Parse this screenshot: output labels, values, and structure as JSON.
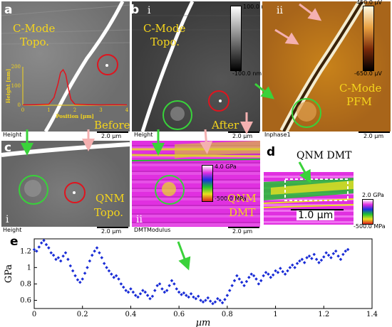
{
  "panels": {
    "a": {
      "letter": "a",
      "title_line1": "C-Mode",
      "title_line2": "Topo.",
      "label_before": "Before",
      "channel": "Height",
      "scale": "2.0 µm"
    },
    "b": {
      "letter": "b",
      "sub_i": "i",
      "sub_ii": "ii",
      "title_line1": "C-Mode",
      "title_line2": "Topo.",
      "label_after": "After",
      "channel_i": "Height",
      "scale_i": "2.0 µm",
      "channel_ii": "Inphase1",
      "scale_ii": "2.0 µm",
      "pfm_line1": "C-Mode",
      "pfm_line2": "PFM",
      "cbar_i_max": "100.0 nm",
      "cbar_i_min": "-100.0 nm",
      "cbar_ii_max": "450.0 µV",
      "cbar_ii_min": "-650.0 µV"
    },
    "c": {
      "letter": "c",
      "sub_i": "i",
      "sub_ii": "ii",
      "topo_line1": "QNM",
      "topo_line2": "Topo.",
      "dmt_line1": "QNM",
      "dmt_line2": "DMT",
      "channel_i": "Height",
      "scale_i": "2.0 µm",
      "channel_ii": "DMTModulus",
      "scale_ii": "2.0 µm",
      "cbar_max": "4.0 GPa",
      "cbar_min": "-500.0 MPa"
    },
    "d": {
      "letter": "d",
      "title": "QNM DMT",
      "scale": "1.0 µm",
      "cbar_max": "2.0 GPa",
      "cbar_min": "-500.0 MPa"
    },
    "e": {
      "letter": "e"
    }
  },
  "inset": {
    "type": "line",
    "xlabel": "Position [µm]",
    "ylabel": "Height [nm]",
    "xlim": [
      0,
      4
    ],
    "ylim": [
      0,
      200
    ],
    "xticks": [
      "0",
      "1",
      "2",
      "3",
      "4"
    ],
    "yticks": [
      "0",
      "100",
      "200"
    ],
    "x": [
      0,
      0.5,
      1.0,
      1.2,
      1.35,
      1.45,
      1.55,
      1.65,
      1.75,
      1.85,
      2.0,
      2.5,
      3.0,
      3.5,
      4.0
    ],
    "y": [
      2,
      3,
      5,
      40,
      110,
      170,
      185,
      160,
      90,
      30,
      5,
      3,
      2,
      3,
      2
    ]
  },
  "chart_data": {
    "type": "scatter",
    "xlabel": "µm",
    "ylabel": "GPa",
    "xlim": [
      0,
      1.4
    ],
    "ylim": [
      0.5,
      1.35
    ],
    "xticks": [
      "0",
      "0.2",
      "0.4",
      "0.6",
      "0.8",
      "1",
      "1.2",
      "1.4"
    ],
    "yticks": [
      "0.6",
      "0.8",
      "1",
      "1.2"
    ],
    "x": [
      0.0,
      0.01,
      0.02,
      0.03,
      0.04,
      0.05,
      0.06,
      0.07,
      0.08,
      0.09,
      0.1,
      0.11,
      0.12,
      0.13,
      0.14,
      0.15,
      0.16,
      0.17,
      0.18,
      0.19,
      0.2,
      0.21,
      0.22,
      0.23,
      0.24,
      0.25,
      0.26,
      0.27,
      0.28,
      0.29,
      0.3,
      0.31,
      0.32,
      0.33,
      0.34,
      0.35,
      0.36,
      0.37,
      0.38,
      0.39,
      0.4,
      0.41,
      0.42,
      0.43,
      0.44,
      0.45,
      0.46,
      0.47,
      0.48,
      0.49,
      0.5,
      0.51,
      0.52,
      0.53,
      0.54,
      0.55,
      0.56,
      0.57,
      0.58,
      0.59,
      0.6,
      0.61,
      0.62,
      0.63,
      0.64,
      0.65,
      0.66,
      0.67,
      0.68,
      0.69,
      0.7,
      0.71,
      0.72,
      0.73,
      0.74,
      0.75,
      0.76,
      0.77,
      0.78,
      0.79,
      0.8,
      0.81,
      0.82,
      0.83,
      0.84,
      0.85,
      0.86,
      0.87,
      0.88,
      0.89,
      0.9,
      0.91,
      0.92,
      0.93,
      0.94,
      0.95,
      0.96,
      0.97,
      0.98,
      0.99,
      1.0,
      1.01,
      1.02,
      1.03,
      1.04,
      1.05,
      1.06,
      1.07,
      1.08,
      1.09,
      1.1,
      1.11,
      1.12,
      1.13,
      1.14,
      1.15,
      1.16,
      1.17,
      1.18,
      1.19,
      1.2,
      1.21,
      1.22,
      1.23,
      1.24,
      1.25,
      1.26,
      1.27,
      1.28,
      1.29,
      1.3
    ],
    "y": [
      1.22,
      1.2,
      1.25,
      1.3,
      1.33,
      1.28,
      1.24,
      1.18,
      1.15,
      1.1,
      1.12,
      1.08,
      1.14,
      1.18,
      1.1,
      1.02,
      0.96,
      0.9,
      0.85,
      0.82,
      0.86,
      0.93,
      1.0,
      1.08,
      1.15,
      1.2,
      1.24,
      1.18,
      1.12,
      1.05,
      1.0,
      0.96,
      0.92,
      0.88,
      0.9,
      0.86,
      0.8,
      0.76,
      0.72,
      0.7,
      0.74,
      0.7,
      0.66,
      0.64,
      0.68,
      0.72,
      0.7,
      0.66,
      0.62,
      0.65,
      0.72,
      0.78,
      0.8,
      0.74,
      0.7,
      0.72,
      0.78,
      0.84,
      0.8,
      0.74,
      0.7,
      0.67,
      0.69,
      0.66,
      0.64,
      0.68,
      0.64,
      0.62,
      0.65,
      0.6,
      0.58,
      0.6,
      0.63,
      0.59,
      0.56,
      0.58,
      0.62,
      0.6,
      0.57,
      0.61,
      0.66,
      0.72,
      0.78,
      0.84,
      0.9,
      0.86,
      0.82,
      0.78,
      0.83,
      0.88,
      0.92,
      0.9,
      0.86,
      0.8,
      0.84,
      0.9,
      0.94,
      0.92,
      0.88,
      0.91,
      0.96,
      0.94,
      0.99,
      0.95,
      0.92,
      0.96,
      1.0,
      1.03,
      1.0,
      1.05,
      1.08,
      1.1,
      1.06,
      1.12,
      1.14,
      1.11,
      1.16,
      1.1,
      1.06,
      1.09,
      1.13,
      1.18,
      1.15,
      1.12,
      1.17,
      1.2,
      1.14,
      1.1,
      1.16,
      1.2,
      1.22
    ],
    "series": [
      {
        "color": "#1a2dd6"
      }
    ]
  }
}
